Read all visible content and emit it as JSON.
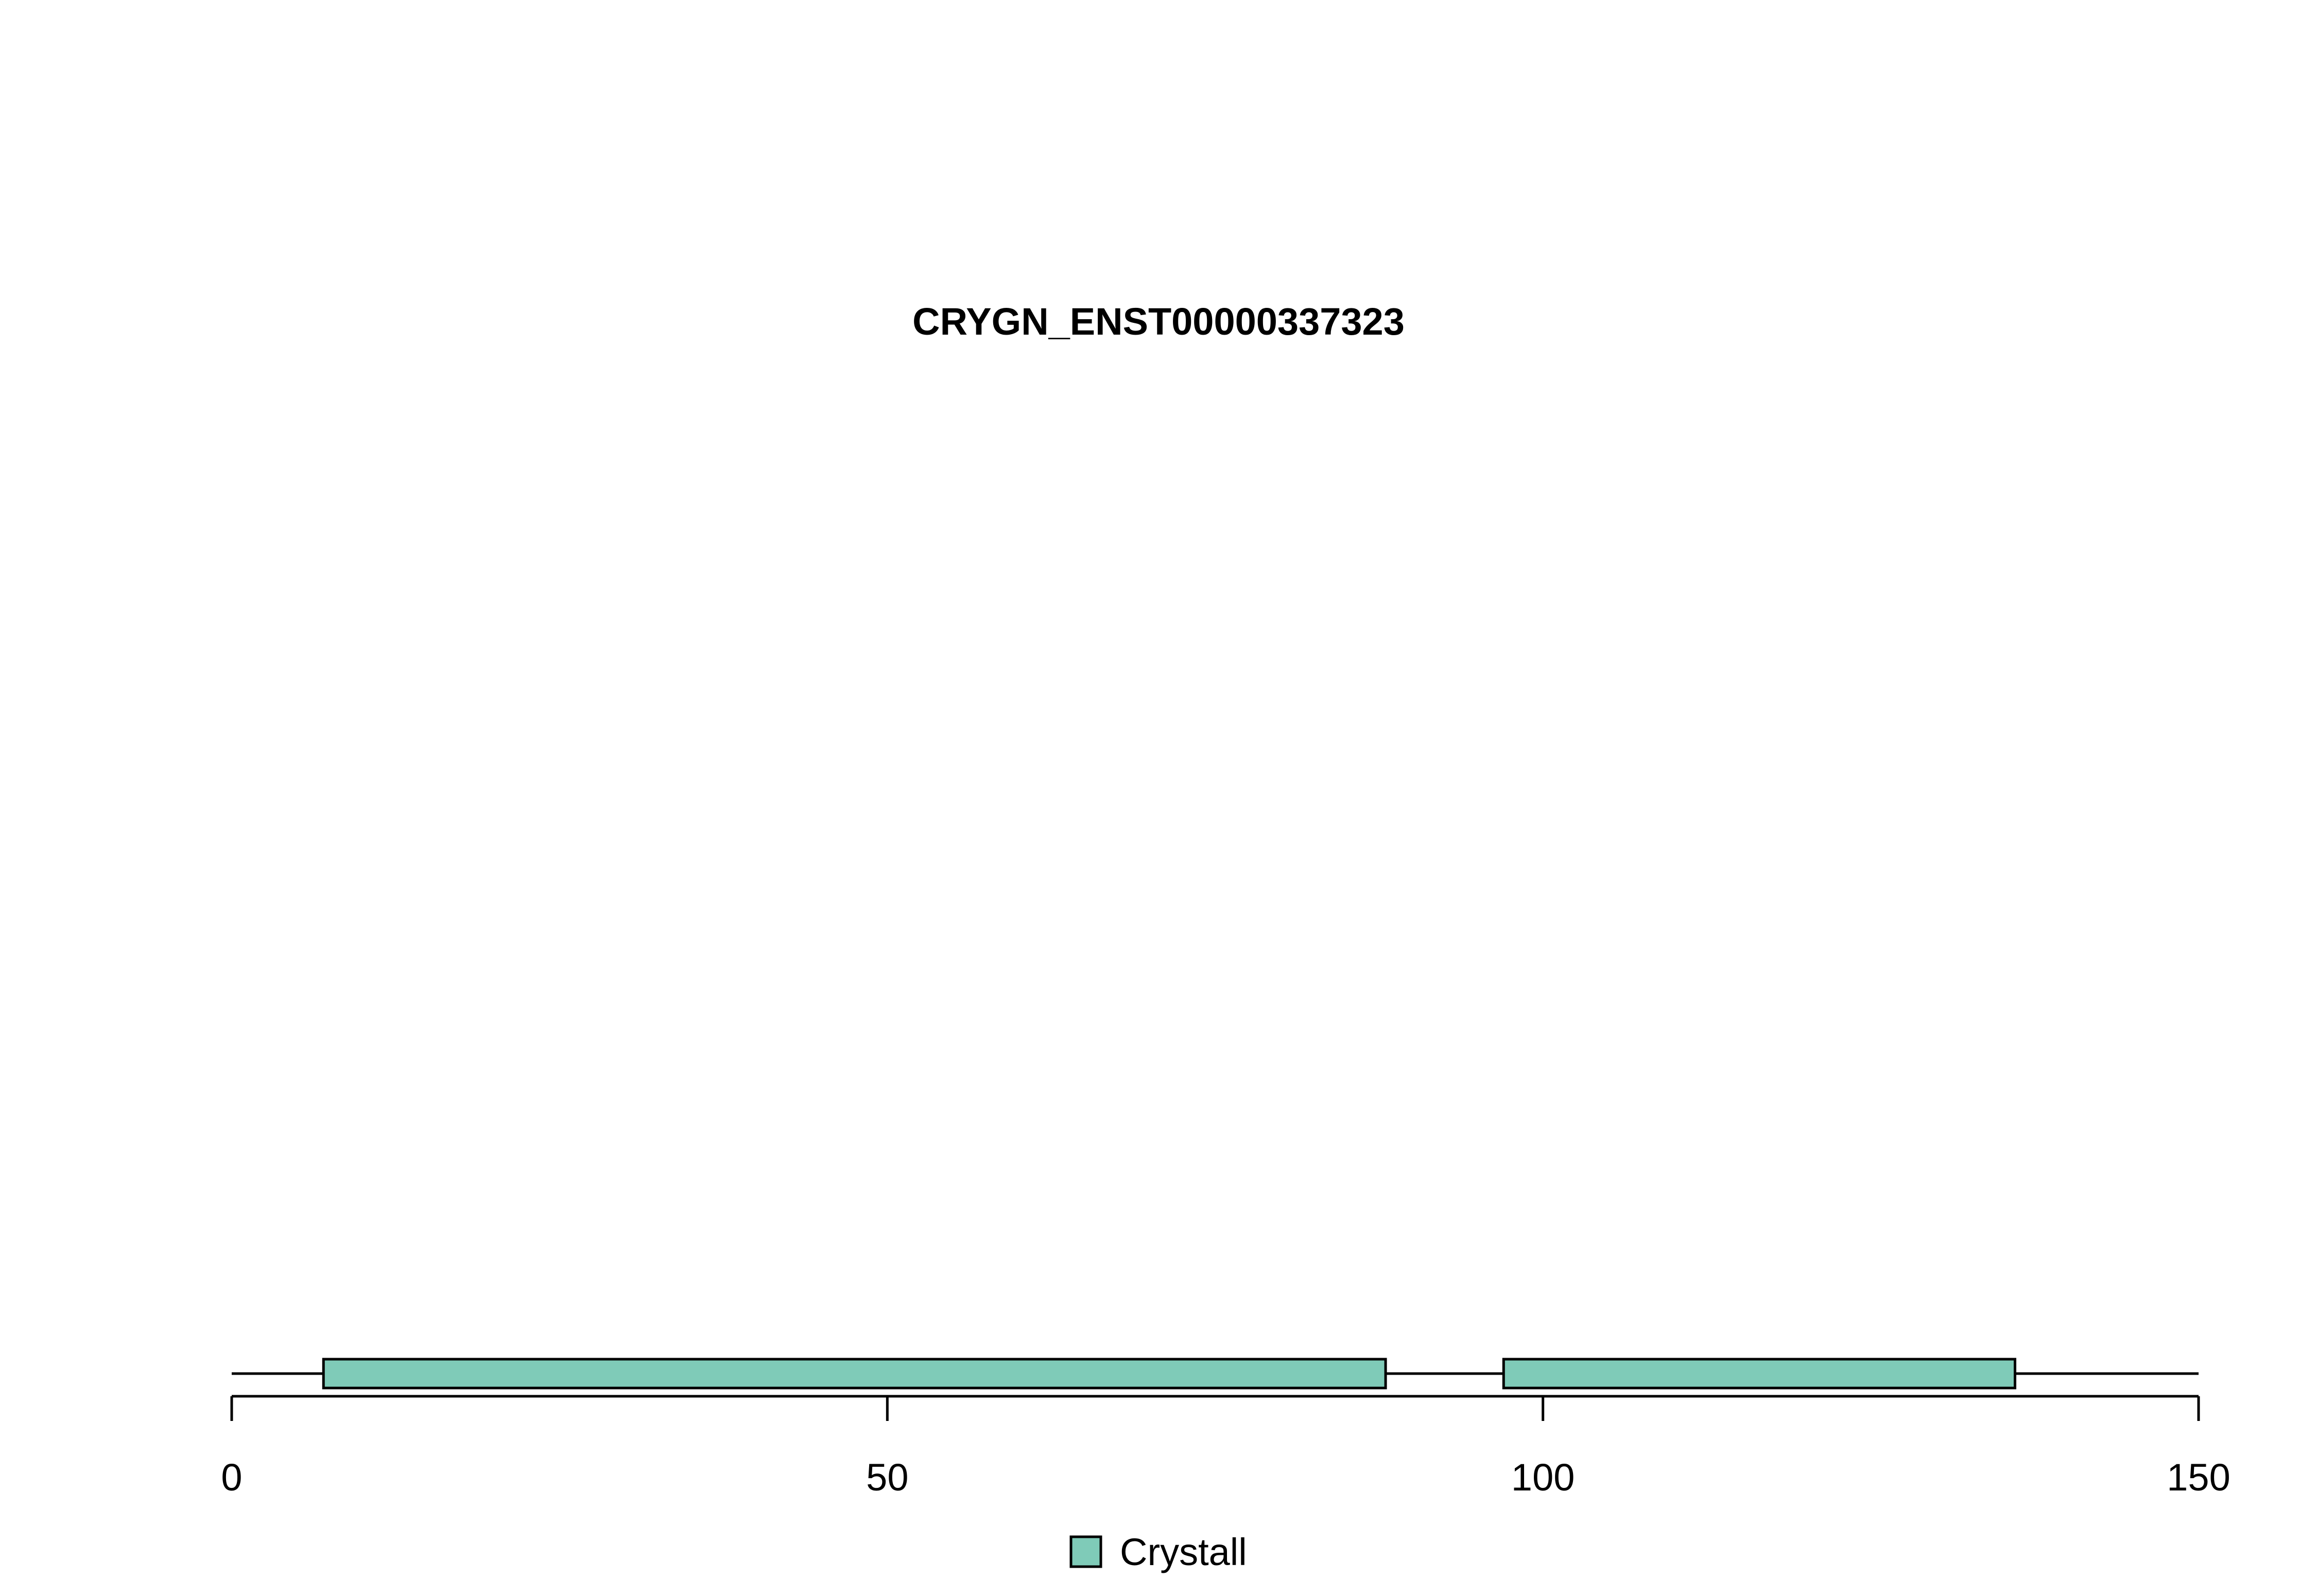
{
  "chart_data": {
    "type": "bar",
    "title": "CRYGN_ENST00000337323",
    "protein_length": 150,
    "xlim": [
      0,
      150
    ],
    "x_ticks": [
      0,
      50,
      100,
      150
    ],
    "x_tick_labels": [
      "0",
      "50",
      "100",
      "150"
    ],
    "domains": [
      {
        "name": "Crystall",
        "start": 7,
        "end": 88
      },
      {
        "name": "Crystall",
        "start": 97,
        "end": 136
      }
    ],
    "legend": [
      {
        "label": "Crystall",
        "color": "#7fcbb8"
      }
    ],
    "legend_position": "bottom-center",
    "colors": {
      "domain_fill": "#7fcbb8",
      "stroke": "#000000"
    }
  }
}
